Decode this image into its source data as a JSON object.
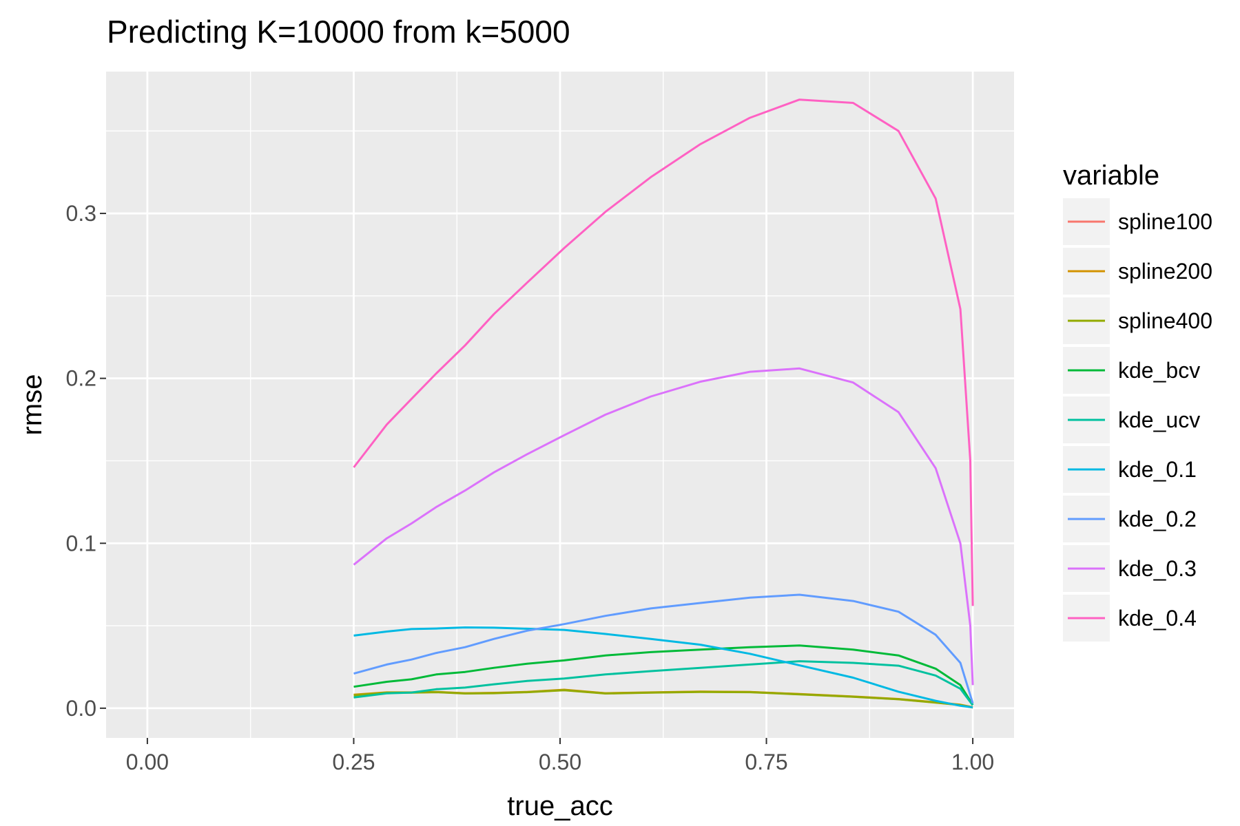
{
  "chart_data": {
    "type": "line",
    "title": "Predicting K=10000 from k=5000",
    "xlabel": "true_acc",
    "ylabel": "rmse",
    "xlim": [
      -0.05,
      1.05
    ],
    "ylim": [
      -0.018,
      0.386
    ],
    "xticks": [
      0,
      0.25,
      0.5,
      0.75,
      1.0
    ],
    "xtick_labels": [
      "0.00",
      "0.25",
      "0.50",
      "0.75",
      "1.00"
    ],
    "yticks": [
      0,
      0.1,
      0.2,
      0.3
    ],
    "ytick_labels": [
      "0.0",
      "0.1",
      "0.2",
      "0.3"
    ],
    "grid": true,
    "legend": {
      "title": "variable",
      "position": "right"
    },
    "series": [
      {
        "name": "spline100",
        "color": "#F8766D",
        "x": [
          0.25,
          0.29,
          0.32,
          0.35,
          0.385,
          0.42,
          0.46,
          0.505,
          0.555,
          0.61,
          0.67,
          0.73,
          0.79,
          0.855,
          0.91,
          0.955,
          0.985,
          1.0
        ],
        "y": [
          0.008,
          0.0095,
          0.0095,
          0.0098,
          0.009,
          0.0092,
          0.0098,
          0.011,
          0.009,
          0.0095,
          0.01,
          0.0098,
          0.0085,
          0.007,
          0.0055,
          0.0035,
          0.002,
          0.0005
        ]
      },
      {
        "name": "spline200",
        "color": "#D39200",
        "x": [
          0.25,
          0.29,
          0.32,
          0.35,
          0.385,
          0.42,
          0.46,
          0.505,
          0.555,
          0.61,
          0.67,
          0.73,
          0.79,
          0.855,
          0.91,
          0.955,
          0.985,
          1.0
        ],
        "y": [
          0.0082,
          0.0096,
          0.0096,
          0.0099,
          0.0091,
          0.0093,
          0.0099,
          0.0112,
          0.0091,
          0.0096,
          0.0101,
          0.0099,
          0.0086,
          0.0071,
          0.0056,
          0.0036,
          0.0021,
          0.0006
        ]
      },
      {
        "name": "spline400",
        "color": "#93AA00",
        "x": [
          0.25,
          0.29,
          0.32,
          0.35,
          0.385,
          0.42,
          0.46,
          0.505,
          0.555,
          0.61,
          0.67,
          0.73,
          0.79,
          0.855,
          0.91,
          0.955,
          0.985,
          1.0
        ],
        "y": [
          0.0078,
          0.0094,
          0.0094,
          0.0097,
          0.0089,
          0.0091,
          0.0097,
          0.0109,
          0.0089,
          0.0094,
          0.0099,
          0.0097,
          0.0084,
          0.0069,
          0.0054,
          0.0034,
          0.0019,
          0.0004
        ]
      },
      {
        "name": "kde_bcv",
        "color": "#00BA38",
        "x": [
          0.25,
          0.29,
          0.32,
          0.35,
          0.385,
          0.42,
          0.46,
          0.505,
          0.555,
          0.61,
          0.67,
          0.73,
          0.79,
          0.855,
          0.91,
          0.955,
          0.985,
          1.0
        ],
        "y": [
          0.013,
          0.016,
          0.0175,
          0.0205,
          0.022,
          0.0245,
          0.027,
          0.029,
          0.032,
          0.034,
          0.0355,
          0.037,
          0.038,
          0.0355,
          0.032,
          0.024,
          0.014,
          0.002
        ]
      },
      {
        "name": "kde_ucv",
        "color": "#00C19F",
        "x": [
          0.25,
          0.29,
          0.32,
          0.35,
          0.385,
          0.42,
          0.46,
          0.505,
          0.555,
          0.61,
          0.67,
          0.73,
          0.79,
          0.855,
          0.91,
          0.955,
          0.985,
          1.0
        ],
        "y": [
          0.0065,
          0.009,
          0.0095,
          0.0115,
          0.0125,
          0.0145,
          0.0165,
          0.018,
          0.0205,
          0.0225,
          0.0245,
          0.0265,
          0.0285,
          0.0275,
          0.0258,
          0.0198,
          0.0118,
          0.0018
        ]
      },
      {
        "name": "kde_0.1",
        "color": "#00B9E3",
        "x": [
          0.25,
          0.29,
          0.32,
          0.35,
          0.385,
          0.42,
          0.46,
          0.505,
          0.555,
          0.61,
          0.67,
          0.73,
          0.79,
          0.855,
          0.91,
          0.955,
          0.985,
          1.0
        ],
        "y": [
          0.044,
          0.0465,
          0.048,
          0.0483,
          0.049,
          0.0488,
          0.0482,
          0.0475,
          0.045,
          0.042,
          0.0385,
          0.033,
          0.026,
          0.0185,
          0.01,
          0.0045,
          0.0015,
          0.0005
        ]
      },
      {
        "name": "kde_0.2",
        "color": "#619CFF",
        "x": [
          0.25,
          0.29,
          0.32,
          0.35,
          0.385,
          0.42,
          0.46,
          0.505,
          0.555,
          0.61,
          0.67,
          0.73,
          0.79,
          0.855,
          0.91,
          0.955,
          0.985,
          1.0
        ],
        "y": [
          0.021,
          0.0265,
          0.0295,
          0.0335,
          0.037,
          0.042,
          0.047,
          0.051,
          0.056,
          0.0605,
          0.0638,
          0.067,
          0.0688,
          0.065,
          0.0585,
          0.0445,
          0.0275,
          0.003
        ]
      },
      {
        "name": "kde_0.3",
        "color": "#DB72FB",
        "x": [
          0.25,
          0.29,
          0.32,
          0.35,
          0.385,
          0.42,
          0.46,
          0.505,
          0.555,
          0.61,
          0.67,
          0.73,
          0.79,
          0.855,
          0.91,
          0.955,
          0.985,
          0.997,
          1.0
        ],
        "y": [
          0.087,
          0.103,
          0.112,
          0.122,
          0.132,
          0.143,
          0.154,
          0.1655,
          0.178,
          0.189,
          0.198,
          0.204,
          0.206,
          0.1975,
          0.1795,
          0.1455,
          0.1,
          0.05,
          0.014
        ]
      },
      {
        "name": "kde_0.4",
        "color": "#FF61C3",
        "x": [
          0.25,
          0.29,
          0.32,
          0.35,
          0.385,
          0.42,
          0.46,
          0.505,
          0.555,
          0.61,
          0.67,
          0.73,
          0.79,
          0.855,
          0.91,
          0.955,
          0.985,
          0.997,
          1.0
        ],
        "y": [
          0.146,
          0.172,
          0.1875,
          0.203,
          0.22,
          0.239,
          0.258,
          0.279,
          0.301,
          0.322,
          0.342,
          0.358,
          0.369,
          0.367,
          0.35,
          0.309,
          0.242,
          0.15,
          0.062
        ]
      }
    ]
  }
}
